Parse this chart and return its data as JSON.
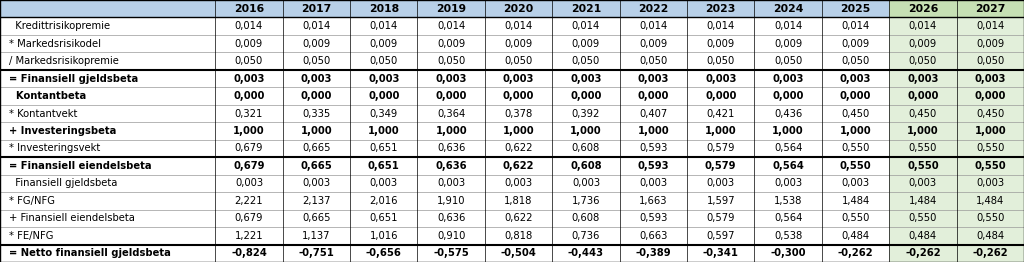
{
  "columns": [
    "",
    "2016",
    "2017",
    "2018",
    "2019",
    "2020",
    "2021",
    "2022",
    "2023",
    "2024",
    "2025",
    "2026",
    "2027"
  ],
  "rows": [
    {
      "label": "  Kredittrisikopremie",
      "bold": false,
      "values": [
        "0,014",
        "0,014",
        "0,014",
        "0,014",
        "0,014",
        "0,014",
        "0,014",
        "0,014",
        "0,014",
        "0,014",
        "0,014",
        "0,014"
      ],
      "border_top": false
    },
    {
      "label": "* Markedsrisikodel",
      "bold": false,
      "values": [
        "0,009",
        "0,009",
        "0,009",
        "0,009",
        "0,009",
        "0,009",
        "0,009",
        "0,009",
        "0,009",
        "0,009",
        "0,009",
        "0,009"
      ],
      "border_top": false
    },
    {
      "label": "/ Markedsrisikopremie",
      "bold": false,
      "values": [
        "0,050",
        "0,050",
        "0,050",
        "0,050",
        "0,050",
        "0,050",
        "0,050",
        "0,050",
        "0,050",
        "0,050",
        "0,050",
        "0,050"
      ],
      "border_top": false
    },
    {
      "label": "= Finansiell gjeldsbeta",
      "bold": true,
      "values": [
        "0,003",
        "0,003",
        "0,003",
        "0,003",
        "0,003",
        "0,003",
        "0,003",
        "0,003",
        "0,003",
        "0,003",
        "0,003",
        "0,003"
      ],
      "border_top": true
    },
    {
      "label": "  Kontantbeta",
      "bold": true,
      "values": [
        "0,000",
        "0,000",
        "0,000",
        "0,000",
        "0,000",
        "0,000",
        "0,000",
        "0,000",
        "0,000",
        "0,000",
        "0,000",
        "0,000"
      ],
      "border_top": false
    },
    {
      "label": "* Kontantvekt",
      "bold": false,
      "values": [
        "0,321",
        "0,335",
        "0,349",
        "0,364",
        "0,378",
        "0,392",
        "0,407",
        "0,421",
        "0,436",
        "0,450",
        "0,450",
        "0,450"
      ],
      "border_top": false
    },
    {
      "label": "+ Investeringsbeta",
      "bold": true,
      "values": [
        "1,000",
        "1,000",
        "1,000",
        "1,000",
        "1,000",
        "1,000",
        "1,000",
        "1,000",
        "1,000",
        "1,000",
        "1,000",
        "1,000"
      ],
      "border_top": false
    },
    {
      "label": "* Investeringsvekt",
      "bold": false,
      "values": [
        "0,679",
        "0,665",
        "0,651",
        "0,636",
        "0,622",
        "0,608",
        "0,593",
        "0,579",
        "0,564",
        "0,550",
        "0,550",
        "0,550"
      ],
      "border_top": false
    },
    {
      "label": "= Finansiell eiendelsbeta",
      "bold": true,
      "values": [
        "0,679",
        "0,665",
        "0,651",
        "0,636",
        "0,622",
        "0,608",
        "0,593",
        "0,579",
        "0,564",
        "0,550",
        "0,550",
        "0,550"
      ],
      "border_top": true
    },
    {
      "label": "  Finansiell gjeldsbeta",
      "bold": false,
      "values": [
        "0,003",
        "0,003",
        "0,003",
        "0,003",
        "0,003",
        "0,003",
        "0,003",
        "0,003",
        "0,003",
        "0,003",
        "0,003",
        "0,003"
      ],
      "border_top": false
    },
    {
      "label": "* FG/NFG",
      "bold": false,
      "values": [
        "2,221",
        "2,137",
        "2,016",
        "1,910",
        "1,818",
        "1,736",
        "1,663",
        "1,597",
        "1,538",
        "1,484",
        "1,484",
        "1,484"
      ],
      "border_top": false
    },
    {
      "label": "+ Finansiell eiendelsbeta",
      "bold": false,
      "values": [
        "0,679",
        "0,665",
        "0,651",
        "0,636",
        "0,622",
        "0,608",
        "0,593",
        "0,579",
        "0,564",
        "0,550",
        "0,550",
        "0,550"
      ],
      "border_top": false
    },
    {
      "label": "* FE/NFG",
      "bold": false,
      "values": [
        "1,221",
        "1,137",
        "1,016",
        "0,910",
        "0,818",
        "0,736",
        "0,663",
        "0,597",
        "0,538",
        "0,484",
        "0,484",
        "0,484"
      ],
      "border_top": false
    },
    {
      "label": "= Netto finansiell gjeldsbeta",
      "bold": true,
      "values": [
        "-0,824",
        "-0,751",
        "-0,656",
        "-0,575",
        "-0,504",
        "-0,443",
        "-0,389",
        "-0,341",
        "-0,300",
        "-0,262",
        "-0,262",
        "-0,262"
      ],
      "border_top": true
    }
  ],
  "header_bg": "#b8d0e8",
  "header_highlight_bg": "#c6e0b4",
  "cell_highlight_bg": "#e2efda",
  "cell_bg": "#ffffff",
  "header_font_size": 7.8,
  "cell_font_size": 7.2,
  "label_font_size": 7.2,
  "highlight_col_indices": [
    11,
    12
  ],
  "col_widths_raw": [
    2.3,
    0.72,
    0.72,
    0.72,
    0.72,
    0.72,
    0.72,
    0.72,
    0.72,
    0.72,
    0.72,
    0.72,
    0.72
  ]
}
